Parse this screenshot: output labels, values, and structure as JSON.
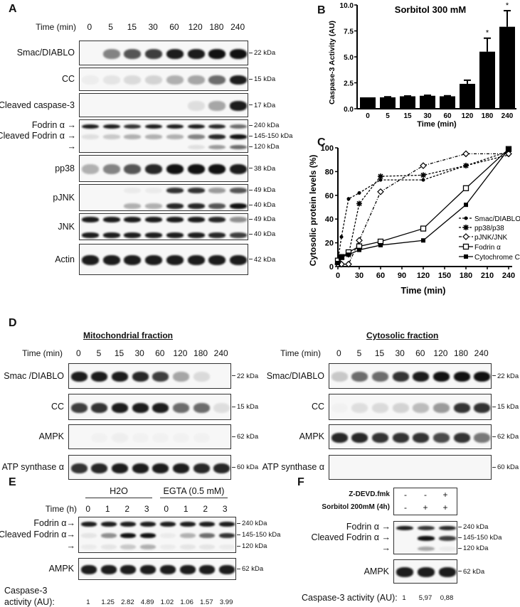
{
  "panels": {
    "A": {
      "letter": "A",
      "time_label": "Time (min)",
      "times": [
        "0",
        "5",
        "15",
        "30",
        "60",
        "120",
        "180",
        "240"
      ],
      "blots": [
        {
          "label": "Smac/DIABLO",
          "bands": [
            {
              "kda": "22 kDa",
              "levels": [
                0,
                0.5,
                0.7,
                0.8,
                0.95,
                0.95,
                1,
                1
              ]
            }
          ]
        },
        {
          "label": "CC",
          "bands": [
            {
              "kda": "15 kDa",
              "levels": [
                0.04,
                0.08,
                0.12,
                0.15,
                0.3,
                0.35,
                0.6,
                0.95
              ]
            }
          ]
        },
        {
          "label": "Cleaved caspase-3",
          "bands": [
            {
              "kda": "17 kDa",
              "levels": [
                0,
                0,
                0,
                0,
                0,
                0.1,
                0.35,
                0.95
              ]
            }
          ]
        },
        {
          "label": "",
          "bands": [
            {
              "label": "Fodrin α →",
              "kda": "240 kDa",
              "levels": [
                0.95,
                0.95,
                0.85,
                0.95,
                0.95,
                0.95,
                0.9,
                0.6
              ]
            },
            {
              "label": "Cleaved Fodrin α →",
              "kda": "145-150 kDa",
              "levels": [
                0.1,
                0.2,
                0.3,
                0.3,
                0.3,
                0.5,
                0.9,
                1
              ]
            },
            {
              "label": "→",
              "kda": "120 kDa",
              "levels": [
                0,
                0,
                0,
                0,
                0,
                0.1,
                0.4,
                0.6
              ]
            }
          ]
        },
        {
          "label": "pp38",
          "bands": [
            {
              "kda": "38 kDa",
              "levels": [
                0.3,
                0.5,
                0.7,
                0.9,
                1,
                1,
                1,
                0.95
              ]
            }
          ]
        },
        {
          "label": "pJNK",
          "bands": [
            {
              "kda": "49 kDa",
              "levels": [
                0,
                0,
                0.05,
                0.05,
                0.85,
                0.85,
                0.4,
                0.7
              ]
            },
            {
              "kda": "40 kDa",
              "levels": [
                0,
                0,
                0.3,
                0.3,
                0.9,
                0.9,
                0.7,
                1
              ]
            }
          ]
        },
        {
          "label": "JNK",
          "bands": [
            {
              "kda": "49 kDa",
              "levels": [
                0.95,
                0.95,
                0.95,
                0.95,
                0.95,
                0.95,
                0.9,
                0.45
              ]
            },
            {
              "kda": "40 kDa",
              "levels": [
                0.95,
                0.95,
                0.95,
                0.95,
                0.95,
                0.95,
                0.9,
                0.8
              ]
            }
          ]
        },
        {
          "label": "Actin",
          "bands": [
            {
              "kda": "42 kDa",
              "levels": [
                0.95,
                0.95,
                0.95,
                0.95,
                0.95,
                0.95,
                0.95,
                0.95
              ]
            }
          ]
        }
      ]
    },
    "B": {
      "letter": "B"
    },
    "C": {
      "letter": "C"
    },
    "D": {
      "letter": "D",
      "time_label": "Time (min)",
      "times": [
        "0",
        "5",
        "15",
        "30",
        "60",
        "120",
        "180",
        "240"
      ],
      "mito": {
        "title": "Mitochondrial fraction",
        "blots": [
          {
            "label": "Smac /DIABLO",
            "bands": [
              {
                "kda": "22 kDa",
                "levels": [
                  0.95,
                  0.95,
                  0.95,
                  0.9,
                  0.8,
                  0.35,
                  0.12,
                  0
                ]
              }
            ]
          },
          {
            "label": "CC",
            "bands": [
              {
                "kda": "15 kDa",
                "levels": [
                  0.8,
                  0.85,
                  0.95,
                  0.95,
                  0.95,
                  0.6,
                  0.6,
                  0.1
                ]
              }
            ]
          },
          {
            "label": "AMPK",
            "bands": [
              {
                "kda": "62 kDa",
                "levels": [
                  0,
                  0.02,
                  0.03,
                  0.02,
                  0.02,
                  0.02,
                  0.02,
                  0
                ]
              }
            ]
          },
          {
            "label": "ATP synthase α",
            "bands": [
              {
                "kda": "60 kDa",
                "levels": [
                  0.85,
                  0.9,
                  0.95,
                  0.95,
                  0.95,
                  0.95,
                  0.9,
                  0.9
                ]
              }
            ]
          }
        ]
      },
      "cyto": {
        "title": "Cytosolic fraction",
        "blots": [
          {
            "label": "Smac/DIABLO",
            "bands": [
              {
                "kda": "22 kDa",
                "levels": [
                  0.2,
                  0.6,
                  0.6,
                  0.85,
                  0.95,
                  1,
                  1,
                  1
                ]
              }
            ]
          },
          {
            "label": "CC",
            "bands": [
              {
                "kda": "15 kDa",
                "levels": [
                  0.02,
                  0.1,
                  0.12,
                  0.15,
                  0.25,
                  0.4,
                  0.85,
                  0.85
                ]
              }
            ]
          },
          {
            "label": "AMPK",
            "bands": [
              {
                "kda": "62 kDa",
                "levels": [
                  0.9,
                  0.9,
                  0.85,
                  0.85,
                  0.85,
                  0.75,
                  0.85,
                  0.55
                ]
              }
            ]
          },
          {
            "label": "ATP synthase α",
            "bands": [
              {
                "kda": "60 kDa",
                "levels": [
                  0,
                  0,
                  0,
                  0,
                  0,
                  0,
                  0,
                  0
                ]
              }
            ]
          }
        ]
      }
    },
    "E": {
      "letter": "E",
      "groups": [
        "H2O",
        "EGTA (0.5 mM)"
      ],
      "time_label": "Time (h)",
      "times": [
        "0",
        "1",
        "2",
        "3",
        "0",
        "1",
        "2",
        "3"
      ],
      "blots": [
        {
          "label": "",
          "bands": [
            {
              "label": "Fodrin α→",
              "kda": "240 kDa",
              "levels": [
                0.95,
                0.95,
                0.95,
                0.95,
                0.95,
                0.95,
                0.95,
                0.95
              ]
            },
            {
              "label": "Cleaved Fodrin α→",
              "kda": "145-150 kDa",
              "levels": [
                0.08,
                0.45,
                1,
                1,
                0.05,
                0.3,
                0.6,
                0.85
              ]
            },
            {
              "label": "→",
              "kda": "120 kDa",
              "levels": [
                0.05,
                0.08,
                0.2,
                0.3,
                0.05,
                0.08,
                0.08,
                0.05
              ]
            }
          ]
        },
        {
          "label": "AMPK",
          "bands": [
            {
              "kda": "62 kDa",
              "levels": [
                0.95,
                0.95,
                0.95,
                0.95,
                0.95,
                0.95,
                0.95,
                0.95
              ]
            }
          ]
        }
      ],
      "activity_label_1": "Caspase-3",
      "activity_label_2": "activity (AU):",
      "activity": [
        "1",
        "1.25",
        "2.82",
        "4.89",
        "1.02",
        "1.06",
        "1.57",
        "3.99"
      ]
    },
    "F": {
      "letter": "F",
      "conditions": [
        {
          "label": "Z-DEVD.fmk",
          "values": [
            "-",
            "-",
            "+"
          ]
        },
        {
          "label": "Sorbitol 200mM (4h)",
          "values": [
            "-",
            "+",
            "+"
          ]
        }
      ],
      "blots": [
        {
          "label": "",
          "bands": [
            {
              "label": "Fodrin α →",
              "kda": "240 kDa",
              "levels": [
                0.95,
                0.85,
                0.9
              ]
            },
            {
              "label": "Cleaved Fodrin α →",
              "kda": "145-150 kDa",
              "levels": [
                0,
                1,
                0.8
              ]
            },
            {
              "label": "→",
              "kda": "120 kDa",
              "levels": [
                0,
                0.35,
                0.05
              ]
            }
          ]
        },
        {
          "label": "AMPK",
          "bands": [
            {
              "kda": "62 kDa",
              "levels": [
                0.95,
                0.95,
                0.95
              ]
            }
          ]
        }
      ],
      "activity_label": "Caspase-3 activity (AU):",
      "activity": [
        "1",
        "5,97",
        "0,88"
      ]
    }
  },
  "chart_data": [
    {
      "type": "bar",
      "title": "Sorbitol 300 mM",
      "xlabel": "Time (min)",
      "ylabel": "Caspase-3 Activity (AU)",
      "categories": [
        "0",
        "5",
        "15",
        "30",
        "60",
        "120",
        "180",
        "240"
      ],
      "values": [
        1.1,
        1.1,
        1.2,
        1.25,
        1.2,
        2.4,
        5.5,
        7.9
      ],
      "errors": [
        0,
        0.05,
        0.03,
        0.05,
        0.05,
        0.35,
        1.3,
        1.55
      ],
      "significance": [
        "",
        "",
        "",
        "",
        "",
        "",
        "*",
        "*"
      ],
      "ylim": [
        0,
        10
      ],
      "yticks": [
        "0.0",
        "2.5",
        "5.0",
        "7.5",
        "10.0"
      ],
      "color": "#000000"
    },
    {
      "type": "line",
      "xlabel": "Time (min)",
      "ylabel": "Cytosolic protein levels (%)",
      "xlim": [
        0,
        240
      ],
      "ylim": [
        0,
        100
      ],
      "xticks": [
        "0",
        "30",
        "60",
        "90",
        "120",
        "150",
        "180",
        "210",
        "240"
      ],
      "yticks": [
        "0",
        "20",
        "40",
        "60",
        "80",
        "100"
      ],
      "legend": "right",
      "series": [
        {
          "name": "Smac/DIABLO",
          "style": "dashed",
          "marker": "dot",
          "x": [
            0,
            5,
            15,
            30,
            60,
            120,
            180,
            240
          ],
          "y": [
            5,
            25,
            57,
            62,
            73,
            73,
            85,
            94
          ]
        },
        {
          "name": "pp38/p38",
          "style": "dashed",
          "marker": "star",
          "x": [
            0,
            5,
            15,
            30,
            60,
            120,
            180,
            240
          ],
          "y": [
            3,
            8,
            10,
            53,
            76,
            77,
            85,
            97
          ]
        },
        {
          "name": "pJNK/JNK",
          "style": "dashdot",
          "marker": "diamond-open",
          "x": [
            0,
            5,
            15,
            30,
            60,
            120,
            180,
            240
          ],
          "y": [
            2,
            2,
            2,
            22,
            63,
            85,
            95,
            95
          ]
        },
        {
          "name": "Fodrin α",
          "style": "solid",
          "marker": "square-open",
          "x": [
            0,
            5,
            15,
            30,
            60,
            120,
            180,
            240
          ],
          "y": [
            5,
            8,
            12,
            17,
            21,
            32,
            66,
            99
          ]
        },
        {
          "name": "Cytochrome C",
          "style": "solid",
          "marker": "square",
          "x": [
            0,
            5,
            15,
            30,
            60,
            120,
            180,
            240
          ],
          "y": [
            3,
            8,
            10,
            14,
            18,
            22,
            52,
            99
          ]
        }
      ]
    }
  ]
}
